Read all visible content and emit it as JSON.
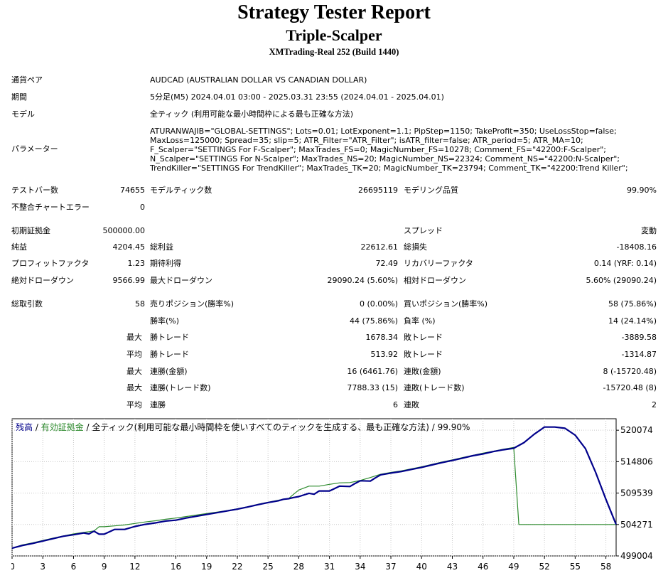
{
  "header": {
    "title": "Strategy Tester Report",
    "ea_name": "Triple-Scalper",
    "server": "XMTrading-Real 252 (Build 1440)"
  },
  "info": {
    "symbol_label": "通貨ペア",
    "symbol_value": "AUDCAD (AUSTRALIAN DOLLAR VS CANADIAN DOLLAR)",
    "period_label": "期間",
    "period_value": "5分足(M5) 2024.04.01 03:00 - 2025.03.31 23:55 (2024.04.01 - 2025.04.01)",
    "model_label": "モデル",
    "model_value": "全ティック (利用可能な最小時間枠による最も正確な方法)",
    "params_label": "パラメーター",
    "params_lines": [
      "ATURANWAJIB=\"GLOBAL-SETTINGS\"; Lots=0.01; LotExponent=1.1; PipStep=1150; TakeProfit=350; UseLossStop=false;",
      "MaxLoss=125000; Spread=35; slip=5; ATR_Filter=\"ATR_Filter\"; isATR_filter=false; ATR_period=5; ATR_MA=10;",
      "F_Scalper=\"SETTINGS For F-Scalper\"; MaxTrades_FS=0; MagicNumber_FS=10278; Comment_FS=\"42200:F-Scalper\";",
      "N_Scalper=\"SETTINGS For N-Scalper\"; MaxTrades_NS=20; MagicNumber_NS=22324; Comment_NS=\"42200:N-Scalper\";",
      "TrendKiller=\"SETTINGS For TrendKiller\"; MaxTrades_TK=20; MagicNumber_TK=23794; Comment_TK=\"42200:Trend Killer\";"
    ]
  },
  "stats": {
    "bars_label": "テストバー数",
    "bars_value": "74655",
    "ticks_label": "モデルティック数",
    "ticks_value": "26695119",
    "quality_label": "モデリング品質",
    "quality_value": "99.90%",
    "mismatch_label": "不整合チャートエラー",
    "mismatch_value": "0",
    "deposit_label": "初期証拠金",
    "deposit_value": "500000.00",
    "spread_label": "スプレッド",
    "spread_value": "変動",
    "net_label": "純益",
    "net_value": "4204.45",
    "gross_profit_label": "総利益",
    "gross_profit_value": "22612.61",
    "gross_loss_label": "総損失",
    "gross_loss_value": "-18408.16",
    "pf_label": "プロフィットファクタ",
    "pf_value": "1.23",
    "expected_label": "期待利得",
    "expected_value": "72.49",
    "recovery_label": "リカバリーファクタ",
    "recovery_value": "0.14 (YRF: 0.14)",
    "abs_dd_label": "絶対ドローダウン",
    "abs_dd_value": "9566.99",
    "max_dd_label": "最大ドローダウン",
    "max_dd_value": "29090.24 (5.60%)",
    "rel_dd_label": "相対ドローダウン",
    "rel_dd_value": "5.60% (29090.24)",
    "total_trades_label": "総取引数",
    "total_trades_value": "58",
    "short_label": "売りポジション(勝率%)",
    "short_value": "0 (0.00%)",
    "long_label": "買いポジション(勝率%)",
    "long_value": "58 (75.86%)",
    "winrate_label": "勝率(%)",
    "winrate_value": "44 (75.86%)",
    "lossrate_label": "負率 (%)",
    "lossrate_value": "14 (24.14%)",
    "max_word": "最大",
    "avg_word": "平均",
    "max_win_label": "勝トレード",
    "max_win_value": "1678.34",
    "max_loss_label": "敗トレード",
    "max_loss_value": "-3889.58",
    "avg_win_label": "勝トレード",
    "avg_win_value": "513.92",
    "avg_loss_label": "敗トレード",
    "avg_loss_value": "-1314.87",
    "max_cons_win_amt_label": "連勝(金額)",
    "max_cons_win_amt_value": "16 (6461.76)",
    "max_cons_loss_amt_label": "連敗(金額)",
    "max_cons_loss_amt_value": "8 (-15720.48)",
    "max_cons_win_cnt_label": "連勝(トレード数)",
    "max_cons_win_cnt_value": "7788.33 (15)",
    "max_cons_loss_cnt_label": "連敗(トレード数)",
    "max_cons_loss_cnt_value": "-15720.48 (8)",
    "avg_cons_win_label": "連勝",
    "avg_cons_win_value": "6",
    "avg_cons_loss_label": "連敗",
    "avg_cons_loss_value": "2"
  },
  "chart_data": {
    "type": "line",
    "legend": {
      "balance": "残高",
      "sep1": " / ",
      "equity": "有効証拠金",
      "rest": " / 全ティック(利用可能な最小時間枠を使いすべてのティックを生成する、最も正確な方法) / 99.90%"
    },
    "balance_color": "#00008b",
    "equity_color": "#2e8b2e",
    "xlim": [
      0,
      59
    ],
    "ylim": [
      499004,
      522000
    ],
    "x_ticks": [
      0,
      3,
      6,
      9,
      12,
      16,
      19,
      22,
      25,
      28,
      31,
      34,
      37,
      40,
      43,
      46,
      49,
      52,
      55,
      58
    ],
    "y_ticks": [
      520074,
      514806,
      509539,
      504271,
      499004
    ],
    "series": [
      {
        "key": "balance",
        "x": [
          0,
          1,
          2,
          3,
          4,
          5,
          6,
          7,
          7.5,
          8,
          8.5,
          9,
          10,
          11,
          12,
          13,
          14,
          15,
          16,
          17,
          18,
          19,
          20,
          21,
          22,
          23,
          24,
          25,
          26,
          26.5,
          27,
          27.5,
          28,
          29,
          29.5,
          30,
          31,
          31.5,
          32,
          33,
          33.5,
          34,
          35,
          35.5,
          36,
          37,
          38,
          39,
          40,
          41,
          42,
          43,
          44,
          45,
          46,
          47,
          48,
          49,
          50,
          51,
          52,
          53,
          54,
          55,
          56,
          57,
          58,
          59
        ],
        "y": [
          500300,
          500750,
          501100,
          501500,
          501900,
          502300,
          502550,
          502850,
          502700,
          503150,
          502650,
          502650,
          503450,
          503450,
          503950,
          504300,
          504550,
          504850,
          505000,
          505350,
          505650,
          505950,
          506250,
          506550,
          506850,
          507200,
          507600,
          507950,
          508250,
          508500,
          508600,
          508800,
          508950,
          509500,
          509350,
          509900,
          509900,
          510300,
          510700,
          510650,
          511150,
          511600,
          511550,
          512100,
          512600,
          512900,
          513150,
          513500,
          513850,
          514250,
          514650,
          515000,
          515400,
          515800,
          516100,
          516500,
          516800,
          517050,
          518000,
          519400,
          520600,
          520600,
          520400,
          519250,
          517000,
          513000,
          508500,
          504271
        ]
      },
      {
        "key": "equity",
        "x": [
          0,
          1,
          2,
          3,
          4,
          5,
          6,
          7,
          8,
          8.5,
          9,
          10,
          11,
          12,
          13,
          14,
          15,
          16,
          17,
          18,
          19,
          20,
          21,
          22,
          23,
          24,
          25,
          26,
          27,
          27.5,
          28,
          29,
          30,
          31,
          32,
          33,
          34,
          35,
          36,
          37,
          38,
          39,
          40,
          41,
          42,
          43,
          44,
          45,
          46,
          47,
          48,
          49,
          49.5,
          50,
          51,
          52,
          53,
          54,
          55,
          56,
          57,
          58,
          59
        ],
        "y": [
          500300,
          500850,
          501200,
          501600,
          502000,
          502350,
          502700,
          502950,
          503200,
          503900,
          503900,
          504050,
          504200,
          504450,
          504700,
          504900,
          505150,
          505350,
          505600,
          505850,
          506100,
          506350,
          506600,
          506900,
          507250,
          507650,
          508000,
          508350,
          508600,
          509350,
          510050,
          510700,
          510700,
          511000,
          511250,
          511300,
          511650,
          512150,
          512700,
          513000,
          513250,
          513600,
          513950,
          514350,
          514750,
          515100,
          515500,
          515850,
          516250,
          516550,
          516900,
          517200,
          504271,
          504271,
          504271,
          504271,
          504271,
          504271,
          504271,
          504271,
          504271,
          504271,
          504271
        ]
      }
    ]
  }
}
